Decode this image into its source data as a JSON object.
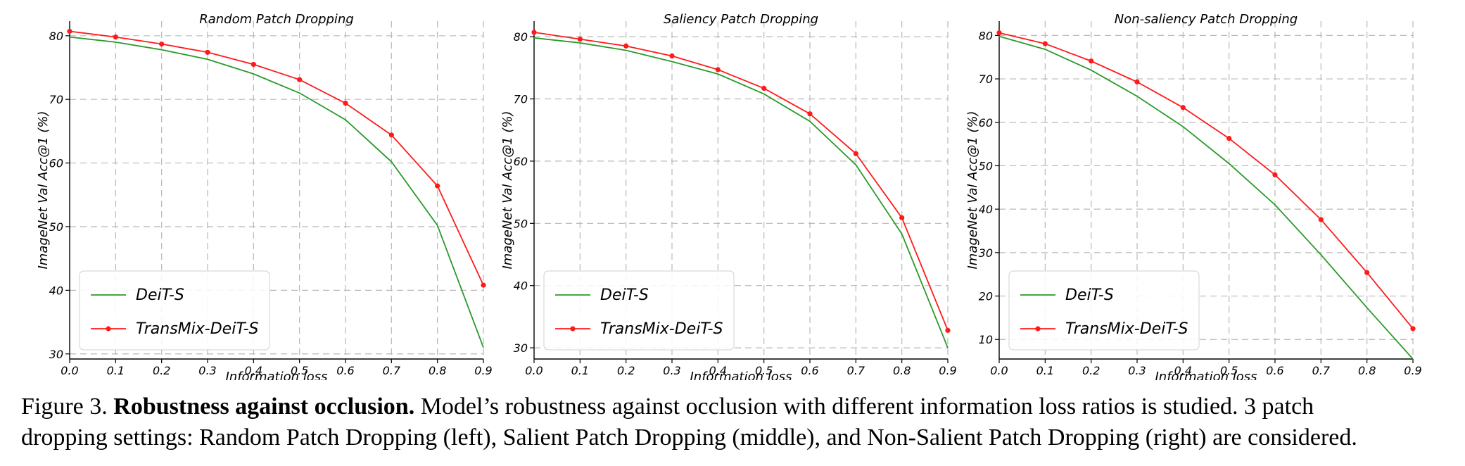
{
  "chart_data": [
    {
      "type": "line",
      "title": "Random Patch Dropping",
      "xlabel": "Information loss",
      "ylabel": "ImageNet Val Acc@1 (%)",
      "x": [
        0.0,
        0.1,
        0.2,
        0.3,
        0.4,
        0.5,
        0.6,
        0.7,
        0.8,
        0.9
      ],
      "xticks": [
        "0.0",
        "0.1",
        "0.2",
        "0.3",
        "0.4",
        "0.5",
        "0.6",
        "0.7",
        "0.8",
        "0.9"
      ],
      "xlim": [
        0.0,
        0.9
      ],
      "yticks": [
        30,
        40,
        50,
        60,
        70,
        80
      ],
      "ylim": [
        29.2,
        82.3
      ],
      "grid": true,
      "legend": "lower-left",
      "series": [
        {
          "name": "DeiT-S",
          "color": "#2a9a2a",
          "marker": false,
          "values": [
            79.8,
            79.0,
            77.8,
            76.3,
            74.0,
            71.0,
            66.8,
            60.2,
            50.2,
            31.0
          ]
        },
        {
          "name": "TransMix-DeiT-S",
          "color": "#ff1a1a",
          "marker": true,
          "values": [
            80.7,
            79.8,
            78.7,
            77.4,
            75.5,
            73.1,
            69.4,
            64.4,
            56.4,
            40.8
          ]
        }
      ]
    },
    {
      "type": "line",
      "title": "Saliency Patch Dropping",
      "xlabel": "Information loss",
      "ylabel": "ImageNet Val Acc@1 (%)",
      "x": [
        0.0,
        0.1,
        0.2,
        0.3,
        0.4,
        0.5,
        0.6,
        0.7,
        0.8,
        0.9
      ],
      "xticks": [
        "0.0",
        "0.1",
        "0.2",
        "0.3",
        "0.4",
        "0.5",
        "0.6",
        "0.7",
        "0.8",
        "0.9"
      ],
      "xlim": [
        0.0,
        0.9
      ],
      "yticks": [
        30,
        40,
        50,
        60,
        70,
        80
      ],
      "ylim": [
        28.2,
        82.5
      ],
      "grid": true,
      "legend": "lower-left",
      "series": [
        {
          "name": "DeiT-S",
          "color": "#2a9a2a",
          "marker": false,
          "values": [
            79.8,
            79.0,
            77.8,
            76.0,
            74.0,
            70.8,
            66.4,
            59.4,
            48.3,
            30.0
          ]
        },
        {
          "name": "TransMix-DeiT-S",
          "color": "#ff1a1a",
          "marker": true,
          "values": [
            80.7,
            79.6,
            78.5,
            76.9,
            74.7,
            71.7,
            67.6,
            61.2,
            50.9,
            32.8
          ]
        }
      ]
    },
    {
      "type": "line",
      "title": "Non-saliency Patch Dropping",
      "xlabel": "Information loss",
      "ylabel": "ImageNet Val Acc@1 (%)",
      "x": [
        0.0,
        0.1,
        0.2,
        0.3,
        0.4,
        0.5,
        0.6,
        0.7,
        0.8,
        0.9
      ],
      "xticks": [
        "0.0",
        "0.1",
        "0.2",
        "0.3",
        "0.4",
        "0.5",
        "0.6",
        "0.7",
        "0.8",
        "0.9"
      ],
      "xlim": [
        0.0,
        0.9
      ],
      "yticks": [
        10,
        20,
        30,
        40,
        50,
        60,
        70,
        80
      ],
      "ylim": [
        5.5,
        83.3
      ],
      "grid": true,
      "legend": "lower-left",
      "series": [
        {
          "name": "DeiT-S",
          "color": "#2a9a2a",
          "marker": false,
          "values": [
            79.8,
            76.8,
            72.0,
            66.0,
            59.0,
            50.5,
            41.0,
            29.5,
            17.3,
            5.5
          ]
        },
        {
          "name": "TransMix-DeiT-S",
          "color": "#ff1a1a",
          "marker": true,
          "values": [
            80.6,
            78.1,
            74.1,
            69.3,
            63.4,
            56.3,
            47.9,
            37.6,
            25.4,
            12.5
          ]
        }
      ]
    }
  ],
  "caption": {
    "label": "Figure 3.",
    "bold": "Robustness against occlusion.",
    "line1": "Model’s robustness against occlusion with different information loss ratios is studied. 3 patch",
    "line2": "dropping settings: Random Patch Dropping (left), Salient Patch Dropping (middle), and Non-Salient Patch Dropping (right) are considered."
  }
}
